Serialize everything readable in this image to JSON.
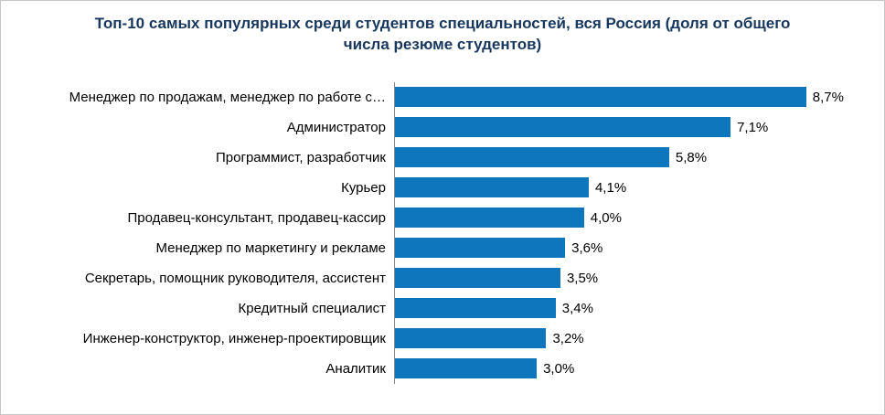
{
  "chart_data": {
    "type": "bar",
    "orientation": "horizontal",
    "title": "Топ-10 самых популярных среди студентов специальностей, вся Россия (доля от общего числа резюме студентов)",
    "categories": [
      "Менеджер по продажам, менеджер по работе с…",
      "Администратор",
      "Программист, разработчик",
      "Курьер",
      "Продавец-консультант, продавец-кассир",
      "Менеджер по маркетингу и рекламе",
      "Секретарь, помощник руководителя, ассистент",
      "Кредитный специалист",
      "Инженер-конструктор, инженер-проектировщик",
      "Аналитик"
    ],
    "values": [
      8.7,
      7.1,
      5.8,
      4.1,
      4.0,
      3.6,
      3.5,
      3.4,
      3.2,
      3.0
    ],
    "value_labels": [
      "8,7%",
      "7,1%",
      "5,8%",
      "4,1%",
      "4,0%",
      "3,6%",
      "3,5%",
      "3,4%",
      "3,2%",
      "3,0%"
    ],
    "xlabel": "",
    "ylabel": "",
    "xlim": [
      0,
      10
    ],
    "grid": false,
    "legend": false,
    "bar_color": "#0e76bc"
  }
}
